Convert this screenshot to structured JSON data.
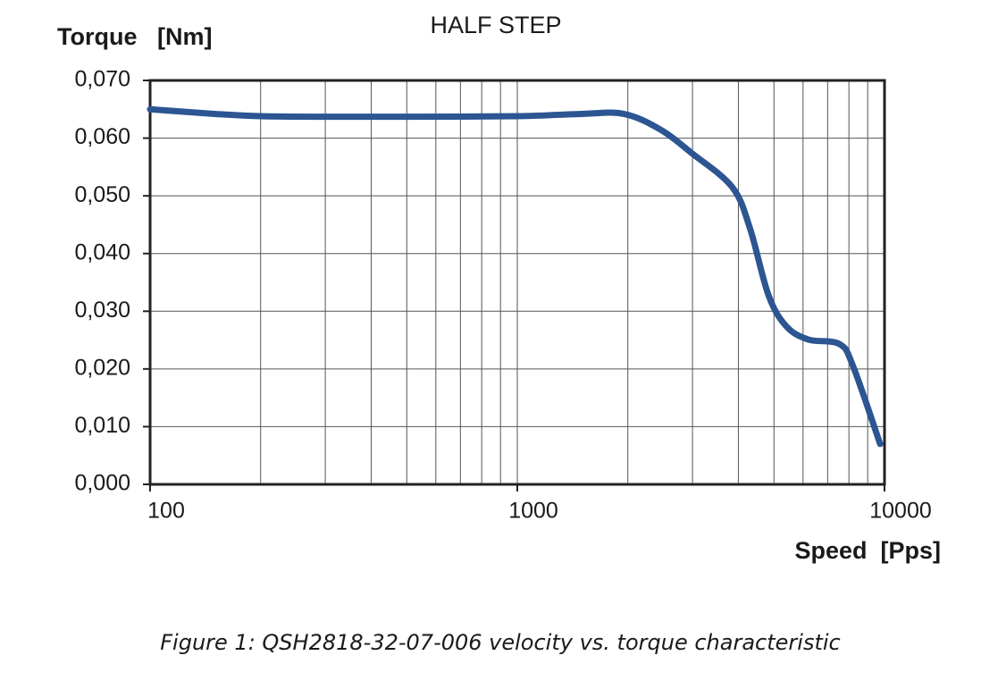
{
  "chart_data": {
    "type": "line",
    "title": "HALF STEP",
    "y_label": "Torque   [Nm]",
    "x_label": "Speed  [Pps]",
    "caption": "Figure 1: QSH2818-32-07-006 velocity vs. torque characteristic",
    "x_scale": "log",
    "grid": true,
    "xlim": [
      100,
      10000
    ],
    "xticks": [
      100,
      1000,
      10000
    ],
    "xgrid_minor": [
      200,
      300,
      400,
      500,
      600,
      700,
      800,
      900,
      2000,
      3000,
      4000,
      5000,
      6000,
      7000,
      8000,
      9000
    ],
    "ylim": [
      0,
      0.07
    ],
    "yticks": [
      {
        "value": 0,
        "label": "0,000"
      },
      {
        "value": 0.01,
        "label": "0,010"
      },
      {
        "value": 0.02,
        "label": "0,020"
      },
      {
        "value": 0.03,
        "label": "0,030"
      },
      {
        "value": 0.04,
        "label": "0,040"
      },
      {
        "value": 0.05,
        "label": "0,050"
      },
      {
        "value": 0.06,
        "label": "0,060"
      },
      {
        "value": 0.07,
        "label": "0,070"
      }
    ],
    "series": [
      {
        "color": "#2c5592",
        "x": [
          100,
          150,
          200,
          300,
          500,
          1000,
          1500,
          1950,
          2450,
          3000,
          3850,
          4300,
          4830,
          5400,
          6200,
          7550,
          8220,
          9730
        ],
        "values": [
          0.065,
          0.0642,
          0.0638,
          0.0637,
          0.0637,
          0.0638,
          0.0642,
          0.0642,
          0.0615,
          0.0573,
          0.0515,
          0.0444,
          0.0328,
          0.0274,
          0.0251,
          0.0243,
          0.0204,
          0.007
        ]
      }
    ]
  }
}
